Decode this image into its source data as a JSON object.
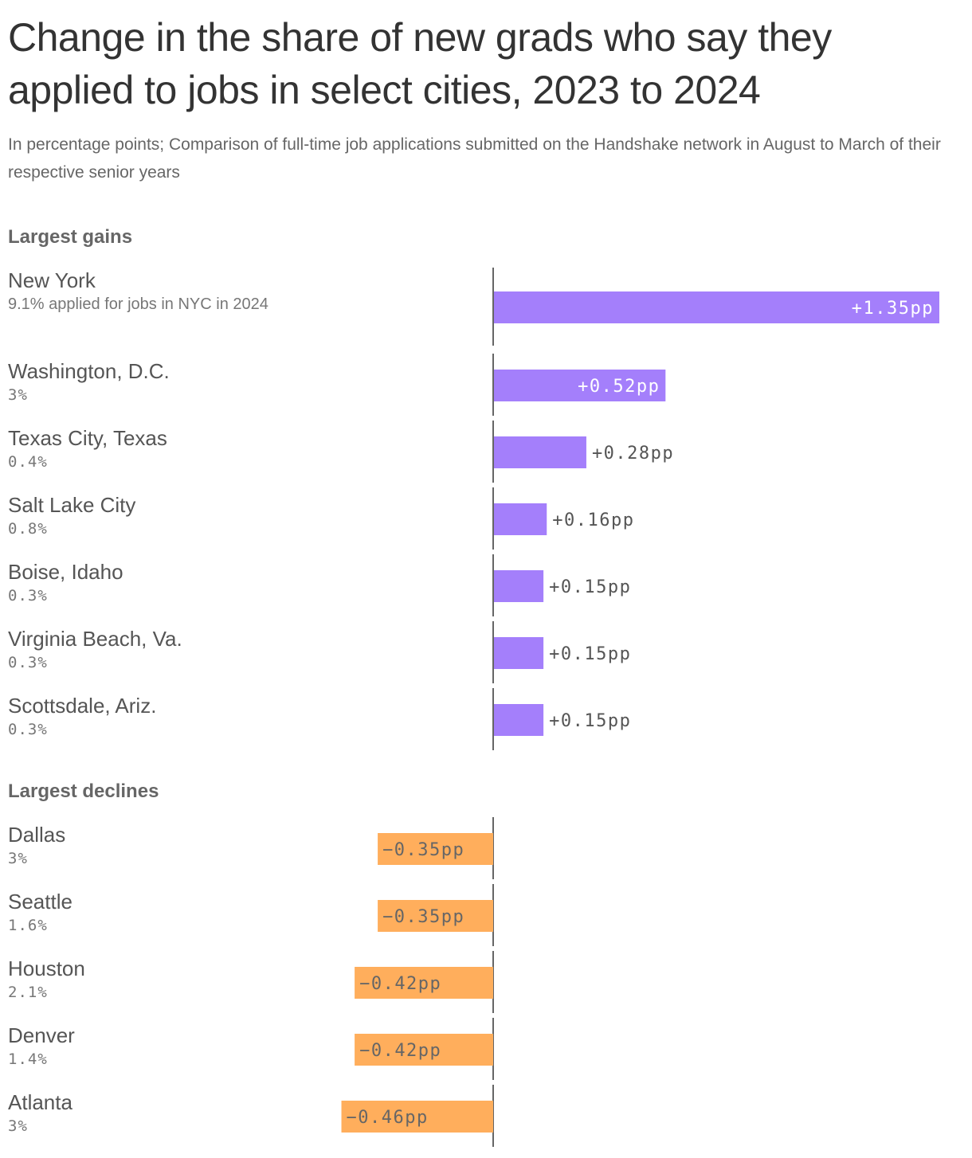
{
  "chart_data": {
    "type": "bar",
    "title": "Change in the share of new grads who say they applied to jobs in select cities, 2023 to 2024",
    "subtitle": "In percentage points; Comparison of full-time job applications submitted on the Handshake network in August to March of their respective senior years",
    "colors": {
      "gain": "#a47ffb",
      "decline": "#ffae5c",
      "axis": "#333333"
    },
    "groups": [
      {
        "name": "Largest gains",
        "rows": [
          {
            "city": "New York",
            "note": "9.1% applied for jobs in NYC in 2024",
            "value": 1.35,
            "label": "+1.35pp"
          },
          {
            "city": "Washington, D.C.",
            "note": "3%",
            "value": 0.52,
            "label": "+0.52pp"
          },
          {
            "city": "Texas City, Texas",
            "note": "0.4%",
            "value": 0.28,
            "label": "+0.28pp"
          },
          {
            "city": "Salt Lake City",
            "note": "0.8%",
            "value": 0.16,
            "label": "+0.16pp"
          },
          {
            "city": "Boise, Idaho",
            "note": "0.3%",
            "value": 0.15,
            "label": "+0.15pp"
          },
          {
            "city": "Virginia Beach, Va.",
            "note": "0.3%",
            "value": 0.15,
            "label": "+0.15pp"
          },
          {
            "city": "Scottsdale, Ariz.",
            "note": "0.3%",
            "value": 0.15,
            "label": "+0.15pp"
          }
        ]
      },
      {
        "name": "Largest declines",
        "rows": [
          {
            "city": "Dallas",
            "note": "3%",
            "value": -0.35,
            "label": "−0.35pp"
          },
          {
            "city": "Seattle",
            "note": "1.6%",
            "value": -0.35,
            "label": "−0.35pp"
          },
          {
            "city": "Houston",
            "note": "2.1%",
            "value": -0.42,
            "label": "−0.42pp"
          },
          {
            "city": "Denver",
            "note": "1.4%",
            "value": -0.42,
            "label": "−0.42pp"
          },
          {
            "city": "Atlanta",
            "note": "3%",
            "value": -0.46,
            "label": "−0.46pp"
          }
        ]
      }
    ]
  }
}
